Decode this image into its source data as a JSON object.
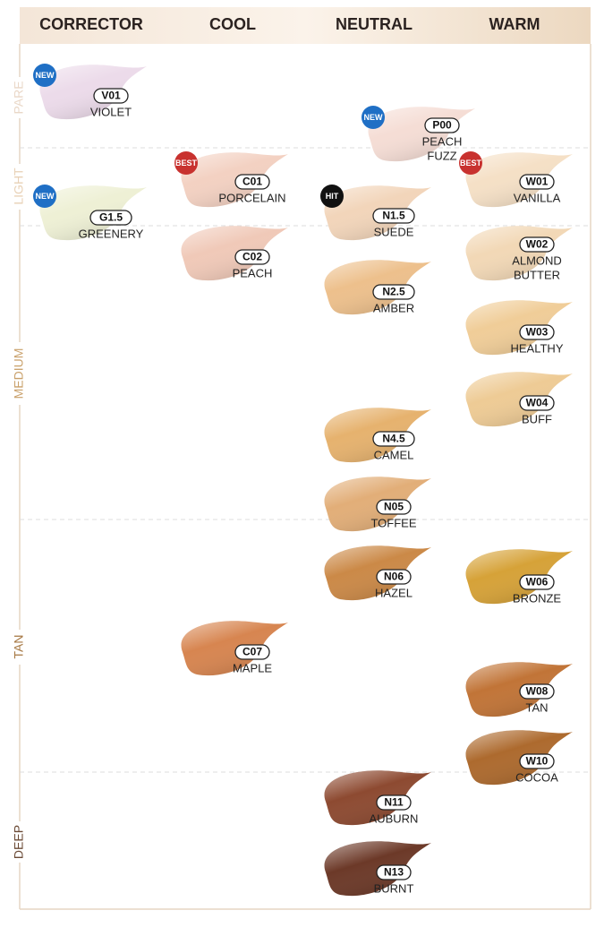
{
  "header": {
    "columns": [
      "CORRECTOR",
      "COOL",
      "NEUTRAL",
      "WARM"
    ]
  },
  "depth_levels": [
    {
      "label": "PARE",
      "color": "#ead8c8"
    },
    {
      "label": "LIGHT",
      "color": "#e8d1b6"
    },
    {
      "label": "MEDIUM",
      "color": "#c9a06a"
    },
    {
      "label": "TAN",
      "color": "#a57640"
    },
    {
      "label": "DEEP",
      "color": "#6b4a35"
    }
  ],
  "swatches": [
    {
      "code": "V01",
      "name": [
        "VIOLET"
      ],
      "badge": "NEW",
      "color": "#ecdbea"
    },
    {
      "code": "P00",
      "name": [
        "PEACH",
        "FUZZ"
      ],
      "badge": "NEW",
      "color": "#f5ddd5"
    },
    {
      "code": "C01",
      "name": [
        "PORCELAIN"
      ],
      "badge": "BEST",
      "color": "#f3d1c2"
    },
    {
      "code": "W01",
      "name": [
        "VANILLA"
      ],
      "badge": "BEST",
      "color": "#f5e0c6"
    },
    {
      "code": "G1.5",
      "name": [
        "GREENERY"
      ],
      "badge": "NEW",
      "color": "#eef0d5"
    },
    {
      "code": "N1.5",
      "name": [
        "SUEDE"
      ],
      "badge": "HIT",
      "color": "#f2d5ba"
    },
    {
      "code": "C02",
      "name": [
        "PEACH"
      ],
      "color": "#f0c9b8"
    },
    {
      "code": "W02",
      "name": [
        "ALMOND",
        "BUTTER"
      ],
      "color": "#f2d8b6"
    },
    {
      "code": "N2.5",
      "name": [
        "AMBER"
      ],
      "color": "#edc08c"
    },
    {
      "code": "W03",
      "name": [
        "HEALTHY"
      ],
      "color": "#f0cd98"
    },
    {
      "code": "W04",
      "name": [
        "BUFF"
      ],
      "color": "#eecb95"
    },
    {
      "code": "N4.5",
      "name": [
        "CAMEL"
      ],
      "color": "#e6b26e"
    },
    {
      "code": "N05",
      "name": [
        "TOFFEE"
      ],
      "color": "#e2ae78"
    },
    {
      "code": "N06",
      "name": [
        "HAZEL"
      ],
      "color": "#cb8947"
    },
    {
      "code": "W06",
      "name": [
        "BRONZE"
      ],
      "color": "#d6a238"
    },
    {
      "code": "C07",
      "name": [
        "MAPLE"
      ],
      "color": "#d78550"
    },
    {
      "code": "W08",
      "name": [
        "TAN"
      ],
      "color": "#c17437"
    },
    {
      "code": "W10",
      "name": [
        "COCOA"
      ],
      "color": "#ad6a2e"
    },
    {
      "code": "N11",
      "name": [
        "AUBURN"
      ],
      "color": "#8d4a31"
    },
    {
      "code": "N13",
      "name": [
        "BURNT"
      ],
      "color": "#6c3928"
    }
  ]
}
